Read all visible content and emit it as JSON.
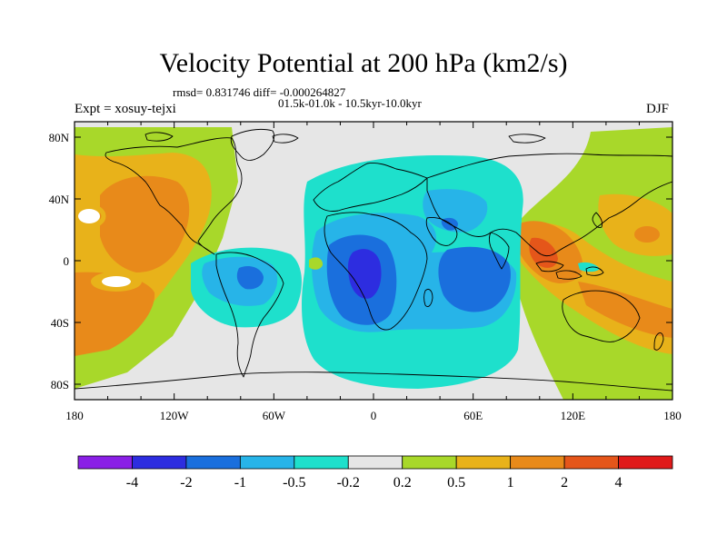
{
  "header": {
    "title": "Velocity Potential at 200 hPa (km2/s)",
    "stats": "rmsd= 0.831746 diff= -0.000264827",
    "period": "01.5k-01.0k - 10.5kyr-10.0kyr",
    "experiment": "Expt = xosuy-tejxi",
    "season": "DJF"
  },
  "map": {
    "projection": "cylindrical equidistant",
    "lon_range": [
      -180,
      180
    ],
    "lat_range": [
      -90,
      90
    ],
    "lat_ticks": [
      "80N",
      "40N",
      "0",
      "40S",
      "80S"
    ],
    "lon_ticks": [
      "180",
      "120W",
      "60W",
      "0",
      "60E",
      "120E",
      "180"
    ],
    "features": [
      "coastlines"
    ]
  },
  "colorbar": {
    "labels": [
      "-4",
      "-2",
      "-1",
      "-0.5",
      "-0.2",
      "0.2",
      "0.5",
      "1",
      "2",
      "4"
    ],
    "colors": [
      "#8a1fe6",
      "#2d2de0",
      "#1a6fdd",
      "#27b4e8",
      "#1ee0cc",
      "#e6e6e6",
      "#a8d82a",
      "#e8b21a",
      "#e88a1a",
      "#e5561a",
      "#e01a1a"
    ]
  }
}
